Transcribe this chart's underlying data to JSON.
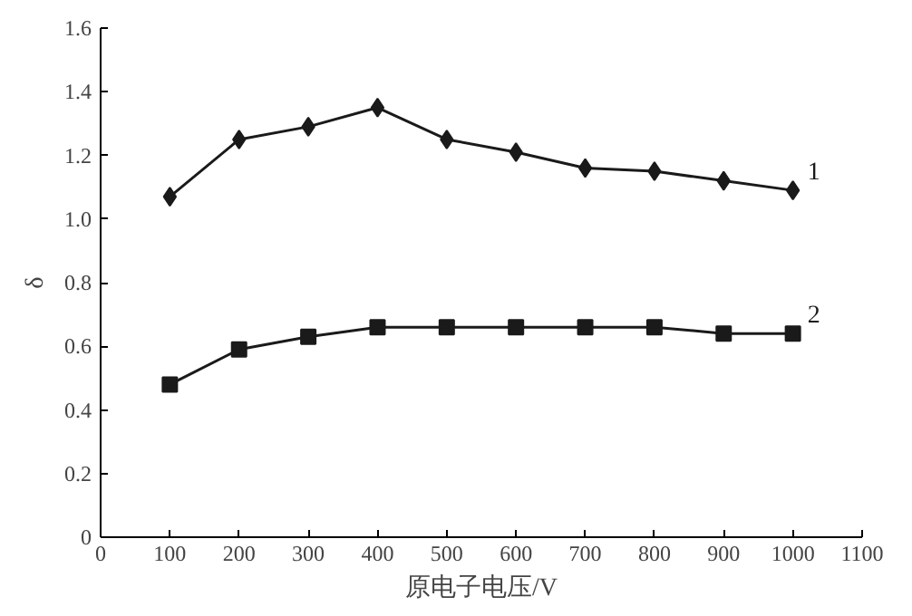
{
  "chart_data": {
    "type": "line",
    "xlabel": "原电子电压/V",
    "ylabel": "δ",
    "x": [
      100,
      200,
      300,
      400,
      500,
      600,
      700,
      800,
      900,
      1000
    ],
    "series": [
      {
        "name": "1",
        "color": "#1a1a1a",
        "marker": "diamond",
        "values": [
          1.07,
          1.25,
          1.29,
          1.35,
          1.25,
          1.21,
          1.16,
          1.15,
          1.12,
          1.09
        ]
      },
      {
        "name": "2",
        "color": "#1a1a1a",
        "marker": "square",
        "values": [
          0.48,
          0.59,
          0.63,
          0.66,
          0.66,
          0.66,
          0.66,
          0.66,
          0.64,
          0.64
        ]
      }
    ],
    "xlim": [
      0,
      1100
    ],
    "xticks": [
      0,
      100,
      200,
      300,
      400,
      500,
      600,
      700,
      800,
      900,
      1000,
      1100
    ],
    "ylim": [
      0,
      1.6
    ],
    "yticks": [
      0,
      {
        "value": 0.2,
        "label": "0.2"
      },
      {
        "value": 0.4,
        "label": "0.4"
      },
      {
        "value": 0.6,
        "label": "0.6"
      },
      {
        "value": 0.8,
        "label": "0.8"
      },
      {
        "value": 1.0,
        "label": "1.0"
      },
      {
        "value": 1.2,
        "label": "1.2"
      },
      {
        "value": 1.4,
        "label": "1.4"
      },
      {
        "value": 1.6,
        "label": "1.6"
      }
    ],
    "grid": false,
    "line_style": "solid"
  }
}
